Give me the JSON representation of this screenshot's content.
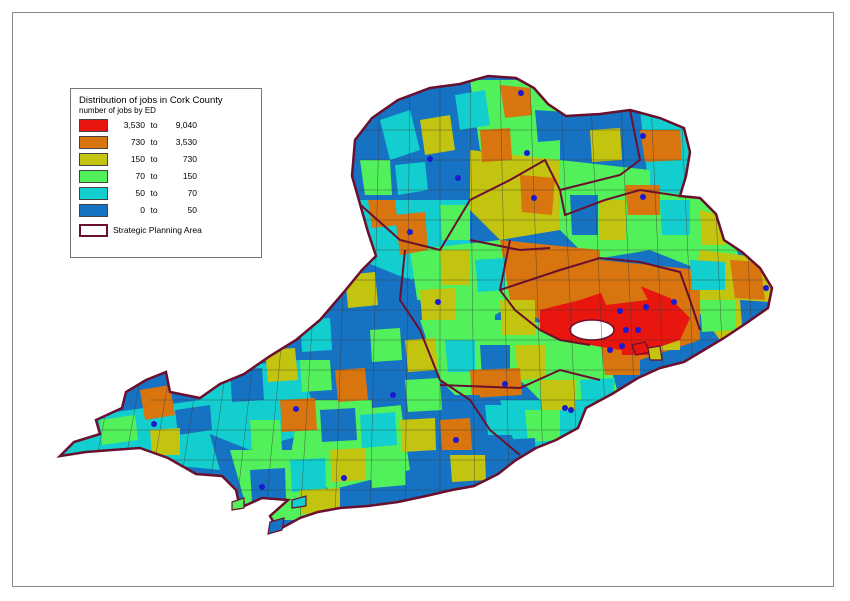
{
  "legend": {
    "title": "Distribution of jobs in Cork County",
    "subtitle": "number of jobs by ED",
    "classes": [
      {
        "lo": "3,530",
        "to": "to",
        "hi": "9,040",
        "color": "#e8160f"
      },
      {
        "lo": "730",
        "to": "to",
        "hi": "3,530",
        "color": "#d9750f"
      },
      {
        "lo": "150",
        "to": "to",
        "hi": "730",
        "color": "#c3c40f"
      },
      {
        "lo": "70",
        "to": "to",
        "hi": "150",
        "color": "#52f05a"
      },
      {
        "lo": "50",
        "to": "to",
        "hi": "70",
        "color": "#12cece"
      },
      {
        "lo": "0",
        "to": "to",
        "hi": "50",
        "color": "#1672c2"
      }
    ],
    "boundary_label": "Strategic Planning Area",
    "boundary_color": "#6b0f2e"
  },
  "colors": {
    "town_marker": "#1a1ad0",
    "district_lines": "#3a3a3a",
    "harbour_water": "#ffffff"
  }
}
